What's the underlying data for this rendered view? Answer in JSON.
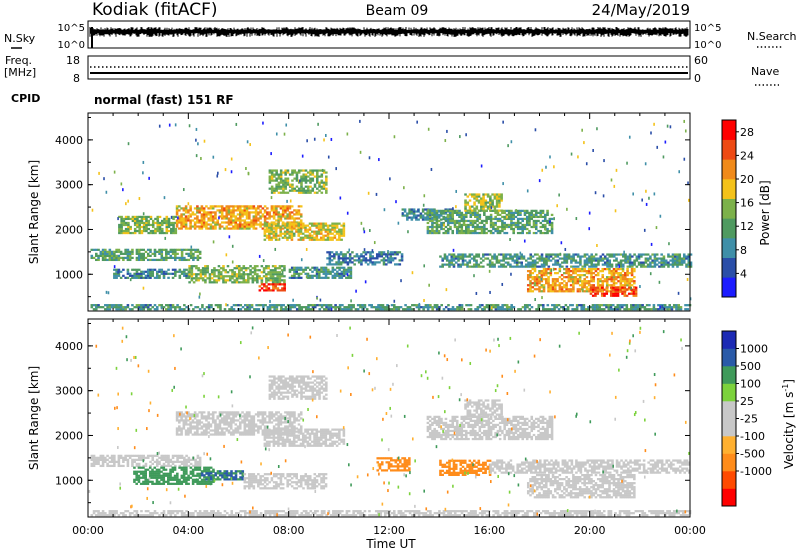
{
  "header": {
    "station": "Kodiak (fitACF)",
    "beam": "Beam 09",
    "date": "24/May/2019"
  },
  "status_panels": {
    "nsky_label": "N.Sky",
    "nsearch_label": "N.Search",
    "nsky_ticks": [
      "10^5",
      "10^0"
    ],
    "nsearch_ticks": [
      "10^5",
      "10^0"
    ],
    "freq_label_1": "Freq.",
    "freq_label_2": "[MHz]",
    "freq_ticks": [
      "18",
      "8"
    ],
    "nave_label": "Nave",
    "nave_ticks": [
      "60",
      "0"
    ],
    "cpid_label": "CPID",
    "cpid_value": "normal (fast) 151 RF"
  },
  "colors": {
    "power_scale": [
      "#1c1cff",
      "#2a4ea8",
      "#3f8fa8",
      "#4f9a60",
      "#7cb14a",
      "#f4c21a",
      "#f08a1a",
      "#ee4a14",
      "#ff0000"
    ],
    "velocity_scale": [
      "#ff0000",
      "#ff4a00",
      "#ff8c1a",
      "#ffb030",
      "#c8c8c8",
      "#c8c8c8",
      "#7cd23c",
      "#3f9a5a",
      "#2a5aa8",
      "#1c2ab4"
    ]
  },
  "chart_data": [
    {
      "type": "heatmap",
      "name": "power",
      "ylabel": "Slant Range [km]",
      "xlabel": "",
      "y_ticks": [
        "1000",
        "2000",
        "3000",
        "4000"
      ],
      "ylim": [
        180,
        4600
      ],
      "colorbar_label": "Power [dB]",
      "colorbar_ticks": [
        "4",
        "8",
        "12",
        "16",
        "20",
        "24",
        "28"
      ],
      "color_range": [
        0,
        30
      ],
      "regions": [
        {
          "t": [
            0.1,
            24
          ],
          "r": [
            200,
            330
          ],
          "v": 10
        },
        {
          "t": [
            0.1,
            4.5
          ],
          "r": [
            1300,
            1550
          ],
          "v": 12
        },
        {
          "t": [
            1.0,
            4.0
          ],
          "r": [
            900,
            1100
          ],
          "v": 9
        },
        {
          "t": [
            1.2,
            3.5
          ],
          "r": [
            1900,
            2300
          ],
          "v": 14
        },
        {
          "t": [
            3.5,
            8.5
          ],
          "r": [
            2000,
            2500
          ],
          "v": 20
        },
        {
          "t": [
            7.0,
            10.2
          ],
          "r": [
            1750,
            2150
          ],
          "v": 17
        },
        {
          "t": [
            4.0,
            7.8
          ],
          "r": [
            800,
            1200
          ],
          "v": 14
        },
        {
          "t": [
            6.8,
            7.8
          ],
          "r": [
            620,
            800
          ],
          "v": 26
        },
        {
          "t": [
            8.0,
            10.5
          ],
          "r": [
            900,
            1150
          ],
          "v": 10
        },
        {
          "t": [
            7.2,
            9.5
          ],
          "r": [
            2800,
            3300
          ],
          "v": 14
        },
        {
          "t": [
            12.5,
            14.5
          ],
          "r": [
            2200,
            2450
          ],
          "v": 9
        },
        {
          "t": [
            13.5,
            18.5
          ],
          "r": [
            1900,
            2400
          ],
          "v": 12
        },
        {
          "t": [
            15.0,
            16.5
          ],
          "r": [
            2400,
            2800
          ],
          "v": 16
        },
        {
          "t": [
            14.0,
            24.0
          ],
          "r": [
            1150,
            1450
          ],
          "v": 10
        },
        {
          "t": [
            17.5,
            21.8
          ],
          "r": [
            600,
            1100
          ],
          "v": 20
        },
        {
          "t": [
            20.0,
            21.8
          ],
          "r": [
            500,
            700
          ],
          "v": 26
        },
        {
          "t": [
            9.5,
            12.5
          ],
          "r": [
            1200,
            1500
          ],
          "v": 8
        }
      ]
    },
    {
      "type": "heatmap",
      "name": "velocity",
      "ylabel": "Slant Range [km]",
      "xlabel": "Time UT",
      "x_ticks": [
        "00:00",
        "04:00",
        "08:00",
        "12:00",
        "16:00",
        "20:00",
        "00:00"
      ],
      "xlim": [
        0,
        24
      ],
      "y_ticks": [
        "1000",
        "2000",
        "3000",
        "4000"
      ],
      "ylim": [
        180,
        4600
      ],
      "colorbar_label": "Velocity [m s^-1]",
      "colorbar_ticks": [
        "1000",
        "500",
        "100",
        "25",
        "-25",
        "-100",
        "-500",
        "-1000"
      ],
      "regions": [
        {
          "t": [
            0.1,
            24
          ],
          "r": [
            200,
            330
          ],
          "v": 0
        },
        {
          "t": [
            0.1,
            4.5
          ],
          "r": [
            1300,
            1550
          ],
          "v": 0
        },
        {
          "t": [
            3.5,
            8.5
          ],
          "r": [
            2000,
            2500
          ],
          "v": 0
        },
        {
          "t": [
            7.0,
            10.2
          ],
          "r": [
            1750,
            2150
          ],
          "v": 0
        },
        {
          "t": [
            1.8,
            5.0
          ],
          "r": [
            900,
            1300
          ],
          "v": 120
        },
        {
          "t": [
            4.5,
            6.2
          ],
          "r": [
            1000,
            1200
          ],
          "v": 500
        },
        {
          "t": [
            6.2,
            9.5
          ],
          "r": [
            800,
            1150
          ],
          "v": 0
        },
        {
          "t": [
            7.2,
            9.5
          ],
          "r": [
            2800,
            3300
          ],
          "v": 0
        },
        {
          "t": [
            11.5,
            12.8
          ],
          "r": [
            1200,
            1500
          ],
          "v": -150
        },
        {
          "t": [
            13.5,
            18.5
          ],
          "r": [
            1900,
            2400
          ],
          "v": 0
        },
        {
          "t": [
            15.0,
            16.5
          ],
          "r": [
            2400,
            2800
          ],
          "v": 0
        },
        {
          "t": [
            14.0,
            16.0
          ],
          "r": [
            1100,
            1450
          ],
          "v": -150
        },
        {
          "t": [
            16.0,
            24.0
          ],
          "r": [
            1150,
            1450
          ],
          "v": 0
        },
        {
          "t": [
            17.5,
            21.8
          ],
          "r": [
            600,
            1100
          ],
          "v": 0
        }
      ]
    }
  ]
}
